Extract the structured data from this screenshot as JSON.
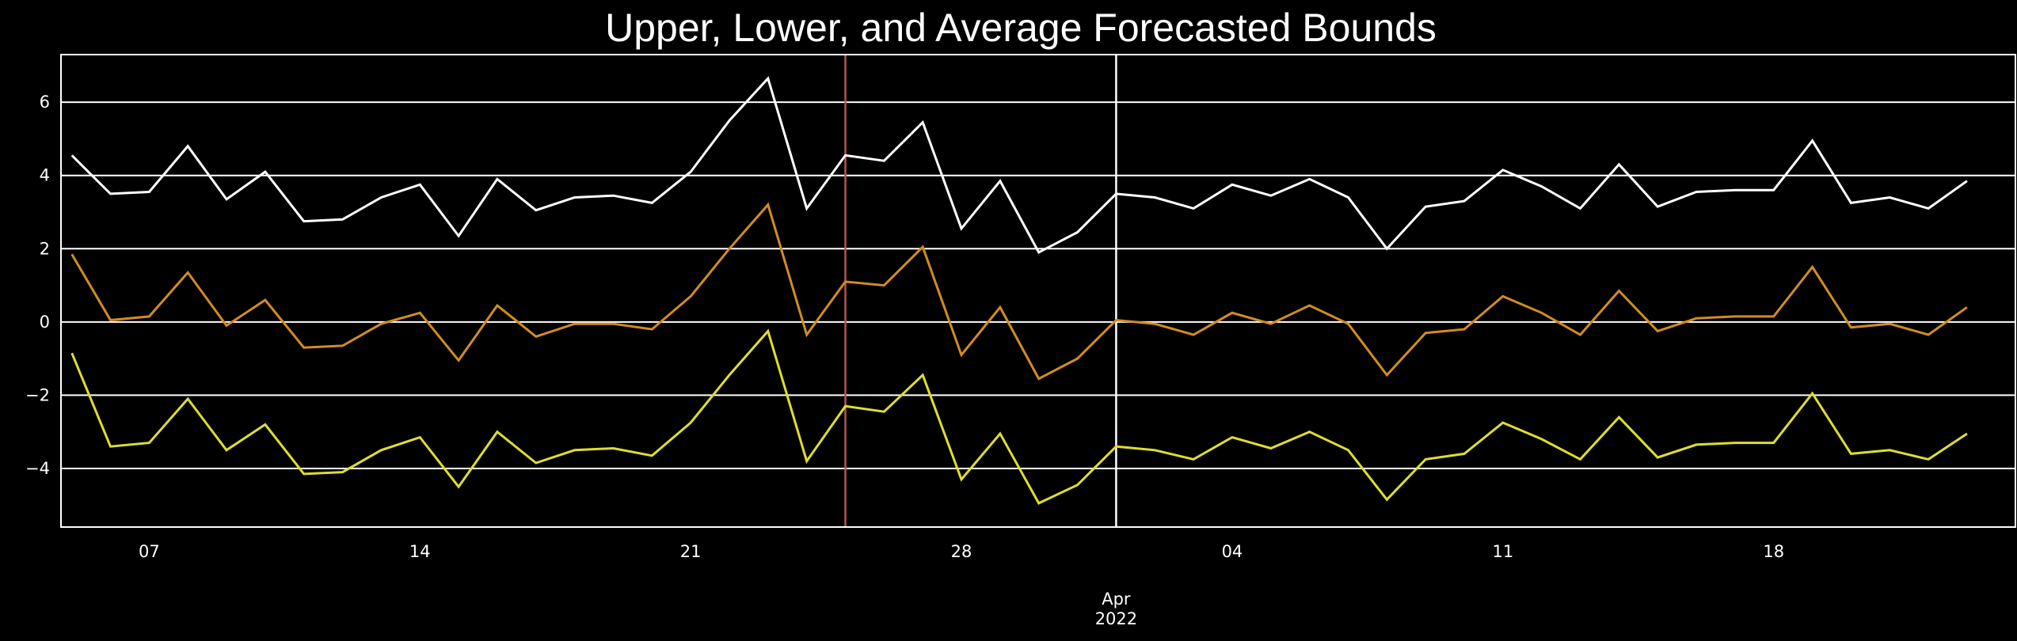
{
  "chart_data": {
    "type": "line",
    "title": "Upper, Lower, and Average Forecasted Bounds",
    "xlabel": "",
    "ylabel": "",
    "x_start_date": "2022-03-05",
    "x_dates": [
      "2022-03-05",
      "2022-03-06",
      "2022-03-07",
      "2022-03-08",
      "2022-03-09",
      "2022-03-10",
      "2022-03-11",
      "2022-03-12",
      "2022-03-13",
      "2022-03-14",
      "2022-03-15",
      "2022-03-16",
      "2022-03-17",
      "2022-03-18",
      "2022-03-19",
      "2022-03-20",
      "2022-03-21",
      "2022-03-22",
      "2022-03-23",
      "2022-03-24",
      "2022-03-25",
      "2022-03-26",
      "2022-03-27",
      "2022-03-28",
      "2022-03-29",
      "2022-03-30",
      "2022-03-31",
      "2022-04-01",
      "2022-04-02",
      "2022-04-03",
      "2022-04-04",
      "2022-04-05",
      "2022-04-06",
      "2022-04-07",
      "2022-04-08",
      "2022-04-09",
      "2022-04-10",
      "2022-04-11",
      "2022-04-12",
      "2022-04-13",
      "2022-04-14",
      "2022-04-15",
      "2022-04-16",
      "2022-04-17",
      "2022-04-18",
      "2022-04-19",
      "2022-04-20",
      "2022-04-21",
      "2022-04-22",
      "2022-04-23",
      "2022-04-24"
    ],
    "x_range": [
      "2022-03-04",
      "2022-04-24"
    ],
    "ylim": [
      -5.6,
      7.3
    ],
    "y_ticks": [
      -4,
      -2,
      0,
      2,
      4,
      6
    ],
    "y_tick_labels": [
      "−4",
      "−2",
      "0",
      "2",
      "4",
      "6"
    ],
    "x_ticks": [
      {
        "date": "2022-03-07",
        "label": "07"
      },
      {
        "date": "2022-03-14",
        "label": "14"
      },
      {
        "date": "2022-03-21",
        "label": "21"
      },
      {
        "date": "2022-03-28",
        "label": "28"
      },
      {
        "date": "2022-04-04",
        "label": "04"
      },
      {
        "date": "2022-04-11",
        "label": "11"
      },
      {
        "date": "2022-04-18",
        "label": "18"
      }
    ],
    "month_label": {
      "date": "2022-04-01",
      "month": "Apr",
      "year": "2022"
    },
    "vertical_lines": [
      {
        "date": "2022-03-25",
        "color": "#b5554f"
      },
      {
        "date": "2022-04-01",
        "color": "#ffffff"
      }
    ],
    "grid": {
      "horizontal": true,
      "vertical": false,
      "color": "#ffffff"
    },
    "series": [
      {
        "color": "#ffffff",
        "values": [
          4.55,
          3.5,
          3.55,
          4.8,
          3.35,
          4.1,
          2.75,
          2.8,
          3.4,
          3.75,
          2.35,
          3.9,
          3.05,
          3.4,
          3.45,
          3.25,
          4.1,
          5.5,
          6.65,
          3.1,
          4.55,
          4.4,
          5.45,
          2.55,
          3.85,
          1.9,
          2.45,
          3.5,
          3.4,
          3.1,
          3.75,
          3.45,
          3.9,
          3.4,
          2.0,
          3.15,
          3.3,
          4.15,
          3.7,
          3.1,
          4.3,
          3.15,
          3.55,
          3.6,
          3.6,
          4.95,
          3.25,
          3.4,
          3.1,
          3.85
        ]
      },
      {
        "color": "#d28c21",
        "values": [
          1.85,
          0.05,
          0.15,
          1.35,
          -0.1,
          0.6,
          -0.7,
          -0.65,
          -0.05,
          0.25,
          -1.05,
          0.45,
          -0.4,
          -0.05,
          -0.05,
          -0.2,
          0.7,
          2.0,
          3.2,
          -0.35,
          1.1,
          1.0,
          2.05,
          -0.9,
          0.4,
          -1.55,
          -1.0,
          0.05,
          -0.05,
          -0.35,
          0.25,
          -0.05,
          0.45,
          -0.05,
          -1.45,
          -0.3,
          -0.2,
          0.7,
          0.25,
          -0.35,
          0.85,
          -0.25,
          0.1,
          0.15,
          0.15,
          1.5,
          -0.15,
          -0.05,
          -0.35,
          0.4
        ]
      },
      {
        "color": "#dede2e",
        "values": [
          -0.85,
          -3.4,
          -3.3,
          -2.1,
          -3.5,
          -2.8,
          -4.15,
          -4.1,
          -3.5,
          -3.15,
          -4.5,
          -3.0,
          -3.85,
          -3.5,
          -3.45,
          -3.65,
          -2.75,
          -1.45,
          -0.25,
          -3.8,
          -2.3,
          -2.45,
          -1.45,
          -4.3,
          -3.05,
          -4.95,
          -4.45,
          -3.4,
          -3.5,
          -3.75,
          -3.15,
          -3.45,
          -3.0,
          -3.5,
          -4.85,
          -3.75,
          -3.6,
          -2.75,
          -3.2,
          -3.75,
          -2.6,
          -3.7,
          -3.35,
          -3.3,
          -3.3,
          -1.95,
          -3.6,
          -3.5,
          -3.75,
          -3.05
        ]
      }
    ]
  }
}
